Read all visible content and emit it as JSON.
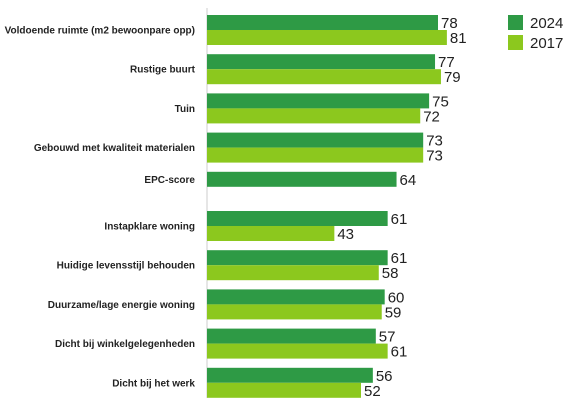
{
  "chart_data": {
    "type": "bar",
    "orientation": "horizontal",
    "title": "",
    "xlabel": "",
    "ylabel": "",
    "xlim": [
      0,
      100
    ],
    "grid": false,
    "legend_position": "top-right",
    "categories": [
      "Voldoende ruimte (m2 bewoonpare opp)",
      "Rustige buurt",
      "Tuin",
      "Gebouwd met kwaliteit materialen",
      "EPC-score",
      "Instapklare woning",
      "Huidige levensstijl behouden",
      "Duurzame/lage energie woning",
      "Dicht bij winkelgelegenheden",
      "Dicht bij het werk"
    ],
    "series": [
      {
        "name": "2024",
        "color": "#2e9a45",
        "values": [
          78,
          77,
          75,
          73,
          64,
          61,
          61,
          60,
          57,
          56
        ]
      },
      {
        "name": "2017",
        "color": "#8cc81e",
        "values": [
          81,
          79,
          72,
          73,
          null,
          43,
          58,
          59,
          61,
          52
        ]
      }
    ]
  }
}
